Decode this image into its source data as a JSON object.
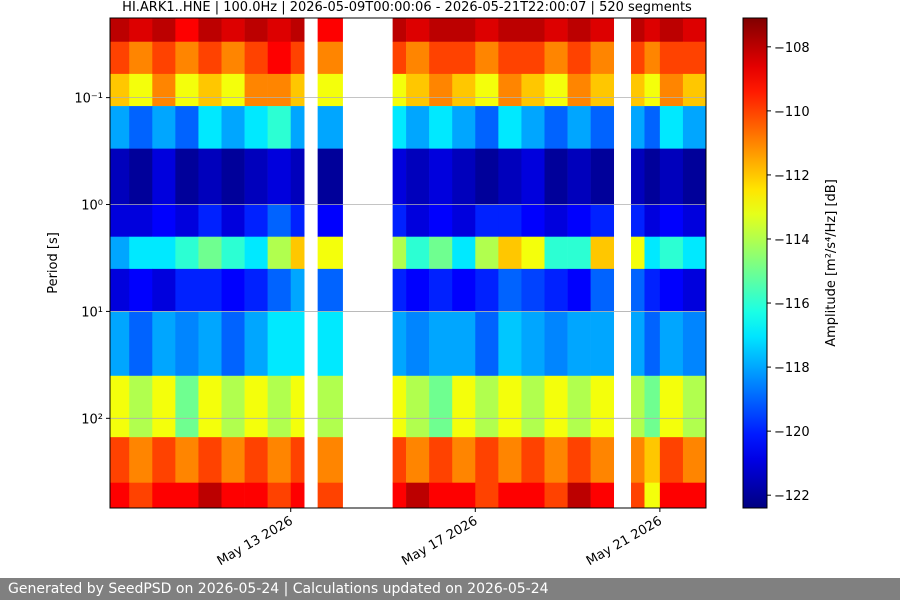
{
  "chart_data": {
    "type": "heatmap",
    "title": "HI.ARK1..HNE | 100.0Hz | 2026-05-09T00:00:06 - 2026-05-21T22:00:07 | 520 segments",
    "y_label": "Period [s]",
    "colorbar_label": "Amplitude [m²/s⁴/Hz] [dB]",
    "colormap": "jet",
    "y_log": true,
    "y_inverted": true,
    "grid": true,
    "x": [
      "2026-05-09T02:00",
      "2026-05-09T12:00",
      "2026-05-10T00:00",
      "2026-05-10T12:00",
      "2026-05-11T00:00",
      "2026-05-11T12:00",
      "2026-05-12T00:00",
      "2026-05-12T12:00",
      "2026-05-13T00:00",
      "2026-05-13T07:00",
      "2026-05-13T14:00",
      "2026-05-14T03:00",
      "2026-05-15T05:00",
      "2026-05-15T12:00",
      "2026-05-16T00:00",
      "2026-05-16T12:00",
      "2026-05-17T00:00",
      "2026-05-17T12:00",
      "2026-05-18T00:00",
      "2026-05-18T12:00",
      "2026-05-19T00:00",
      "2026-05-19T12:00",
      "2026-05-20T00:00",
      "2026-05-20T09:00",
      "2026-05-20T16:00",
      "2026-05-21T00:00",
      "2026-05-21T12:00",
      "2026-05-22T00:00"
    ],
    "y": [
      0.018,
      0.03,
      0.06,
      0.12,
      0.3,
      1,
      2,
      4,
      10,
      40,
      150,
      400,
      690
    ],
    "z": [
      [
        -108,
        -108.5,
        -108,
        -109,
        -108,
        -108.5,
        -108,
        -108.5,
        -108,
        null,
        -109,
        null,
        -108,
        -108.5,
        -108,
        -108,
        -108.5,
        -108,
        -108,
        -108.5,
        -108,
        -108.5,
        null,
        -108,
        -108.5,
        -108,
        -108.5
      ],
      [
        -110,
        -111,
        -110,
        -111,
        -110,
        -111,
        -110,
        -109,
        -110,
        null,
        -111,
        null,
        -110,
        -111,
        -110,
        -110,
        -111,
        -110,
        -110,
        -111,
        -110,
        -111,
        null,
        -110,
        -111,
        -110,
        -110
      ],
      [
        -112,
        -113,
        -111,
        -113,
        -112,
        -113,
        -111,
        -111,
        -112,
        null,
        -113,
        null,
        -113,
        -112,
        -111,
        -112,
        -113,
        -111,
        -112,
        -113,
        -111,
        -112,
        null,
        -112,
        -113,
        -111,
        -112
      ],
      [
        -118,
        -119,
        -118,
        -119,
        -117,
        -118,
        -117,
        -116,
        -118,
        null,
        -118,
        null,
        -117,
        -118,
        -117,
        -118,
        -119,
        -117,
        -118,
        -119,
        -118,
        -119,
        null,
        -118,
        -119,
        -117,
        -118
      ],
      [
        -121.5,
        -122,
        -121,
        -122,
        -121.5,
        -122,
        -121.5,
        -121,
        -121.5,
        null,
        -122,
        null,
        -121,
        -121.5,
        -121,
        -121.5,
        -122,
        -121.5,
        -121,
        -122,
        -121.5,
        -122,
        null,
        -121.5,
        -122,
        -121.5,
        -122
      ],
      [
        -121,
        -121,
        -120.5,
        -121,
        -120,
        -121,
        -120,
        -119,
        -120,
        null,
        -120.5,
        null,
        -120,
        -121,
        -120.5,
        -121,
        -120,
        -120,
        -120.5,
        -121,
        -120.5,
        -120,
        null,
        -120,
        -121,
        -120.5,
        -121
      ],
      [
        -118,
        -117,
        -117,
        -116,
        -115,
        -116,
        -117,
        -114,
        -112,
        null,
        -113,
        null,
        -114,
        -116,
        -115,
        -117,
        -114,
        -112,
        -113,
        -116,
        -116,
        -112,
        null,
        -113,
        -117,
        -116,
        -117
      ],
      [
        -121,
        -120.5,
        -121,
        -120,
        -120,
        -120.5,
        -120,
        -119,
        -118,
        null,
        -119,
        null,
        -120,
        -120.5,
        -120,
        -120.5,
        -120,
        -119,
        -119.5,
        -120,
        -120.5,
        -119,
        null,
        -119,
        -120,
        -120.5,
        -121
      ],
      [
        -118,
        -119,
        -118,
        -118.5,
        -118,
        -119,
        -118,
        -117,
        -117,
        null,
        -117,
        null,
        -118,
        -118.5,
        -118,
        -118,
        -119,
        -117.5,
        -118,
        -118.5,
        -118,
        -118,
        null,
        -118,
        -119,
        -118,
        -118.5
      ],
      [
        -113,
        -114,
        -113,
        -115,
        -113,
        -114,
        -113,
        -114,
        -113,
        null,
        -114,
        null,
        -113,
        -114,
        -115,
        -113,
        -114,
        -113,
        -114,
        -113,
        -114,
        -113,
        null,
        -114,
        -115,
        -113,
        -114
      ],
      [
        -110,
        -111,
        -110,
        -111,
        -110,
        -111,
        -110,
        -111,
        -110,
        null,
        -111,
        null,
        -110,
        -111,
        -110,
        -111,
        -110,
        -111,
        -110,
        -111,
        -110,
        -111,
        null,
        -111,
        -112,
        -110,
        -111
      ],
      [
        -109,
        -110,
        -109,
        -109,
        -108,
        -109,
        -109,
        -110,
        -109,
        null,
        -110,
        null,
        -109,
        -108,
        -109,
        -109,
        -110,
        -109,
        -109,
        -110,
        -108,
        -109,
        null,
        -110,
        -113,
        -109,
        -109
      ]
    ],
    "xlim": [
      "2026-05-09T02:00",
      "2026-05-22T00:00"
    ],
    "xticks": [
      {
        "value": "2026-05-13T00:00",
        "label": "May 13 2026"
      },
      {
        "value": "2026-05-17T00:00",
        "label": "May 17 2026"
      },
      {
        "value": "2026-05-21T00:00",
        "label": "May 21 2026"
      }
    ],
    "ylim": [
      0.018,
      690
    ],
    "yticks": [
      {
        "value": 0.1,
        "label": "10⁻¹"
      },
      {
        "value": 1,
        "label": "10⁰"
      },
      {
        "value": 10,
        "label": "10¹"
      },
      {
        "value": 100,
        "label": "10²"
      }
    ],
    "clim": [
      -122.4,
      -107.1
    ],
    "cticks": [
      {
        "value": -108,
        "label": "−108"
      },
      {
        "value": -110,
        "label": "−110"
      },
      {
        "value": -112,
        "label": "−112"
      },
      {
        "value": -114,
        "label": "−114"
      },
      {
        "value": -116,
        "label": "−116"
      },
      {
        "value": -118,
        "label": "−118"
      },
      {
        "value": -120,
        "label": "−120"
      },
      {
        "value": -122,
        "label": "−122"
      }
    ]
  },
  "footer": "Generated by SeedPSD on 2026-05-24 | Calculations updated on 2026-05-24"
}
